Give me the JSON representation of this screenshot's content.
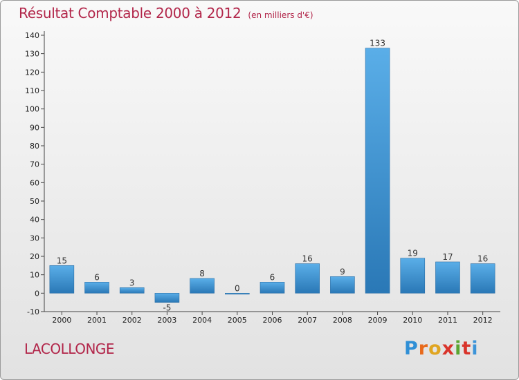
{
  "header": {
    "title": "Résultat Comptable 2000 à 2012",
    "subtitle": "(en milliers d'€)"
  },
  "commune": "LACOLLONGE",
  "logo": {
    "text": "Proxiti",
    "letters": [
      "P",
      "r",
      "o",
      "x",
      "i",
      "t",
      "i"
    ]
  },
  "colors": {
    "title": "#b2264a",
    "bar_top": "#5aaee8",
    "bar_bottom": "#2a78b6"
  },
  "chart_data": {
    "type": "bar",
    "title": "Résultat Comptable 2000 à 2012",
    "subtitle": "(en milliers d'€)",
    "xlabel": "",
    "ylabel": "",
    "categories": [
      "2000",
      "2001",
      "2002",
      "2003",
      "2004",
      "2005",
      "2006",
      "2007",
      "2008",
      "2009",
      "2010",
      "2011",
      "2012"
    ],
    "values": [
      15,
      6,
      3,
      -5,
      8,
      0,
      6,
      16,
      9,
      133,
      19,
      17,
      16
    ],
    "ylim": [
      -10,
      140
    ],
    "yticks": [
      -10,
      0,
      10,
      20,
      30,
      40,
      50,
      60,
      70,
      80,
      90,
      100,
      110,
      120,
      130,
      140
    ],
    "grid": false,
    "legend": "none"
  }
}
